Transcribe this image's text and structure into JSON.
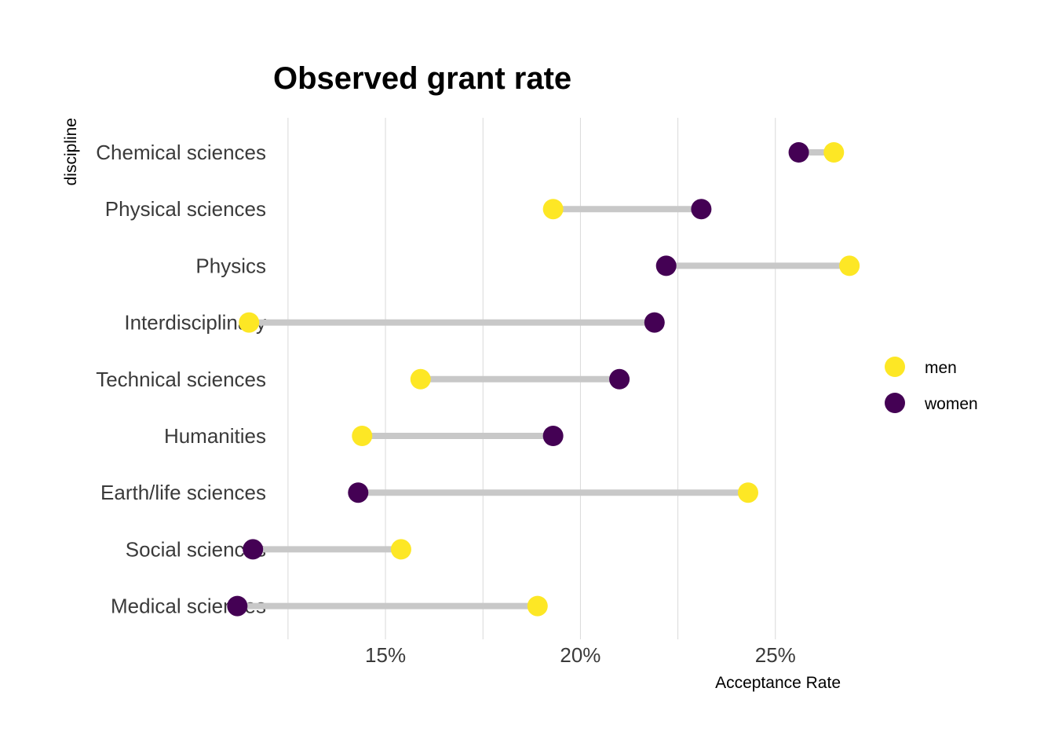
{
  "chart_data": {
    "type": "dumbbell",
    "title": "Observed grant rate",
    "xlabel": "Acceptance Rate",
    "ylabel": "discipline",
    "xlim": [
      12.2,
      27.3
    ],
    "x_ticks": [
      15,
      20,
      25
    ],
    "x_tick_labels": [
      "15%",
      "20%",
      "25%"
    ],
    "grid": "vertical",
    "legend_position": "right",
    "categories": [
      "Chemical sciences",
      "Physical sciences",
      "Physics",
      "Interdisciplinary",
      "Technical sciences",
      "Humanities",
      "Earth/life sciences",
      "Social sciences",
      "Medical sciences"
    ],
    "series": [
      {
        "name": "men",
        "color": "#fde725",
        "values": [
          26.5,
          19.3,
          26.9,
          11.5,
          15.9,
          14.4,
          24.3,
          15.4,
          18.9
        ]
      },
      {
        "name": "women",
        "color": "#440154",
        "values": [
          25.6,
          23.1,
          22.2,
          21.9,
          21.0,
          19.3,
          14.3,
          11.6,
          11.2
        ]
      }
    ],
    "connector_color": "#c8c8c8",
    "grid_color": "#d9d9d9"
  }
}
